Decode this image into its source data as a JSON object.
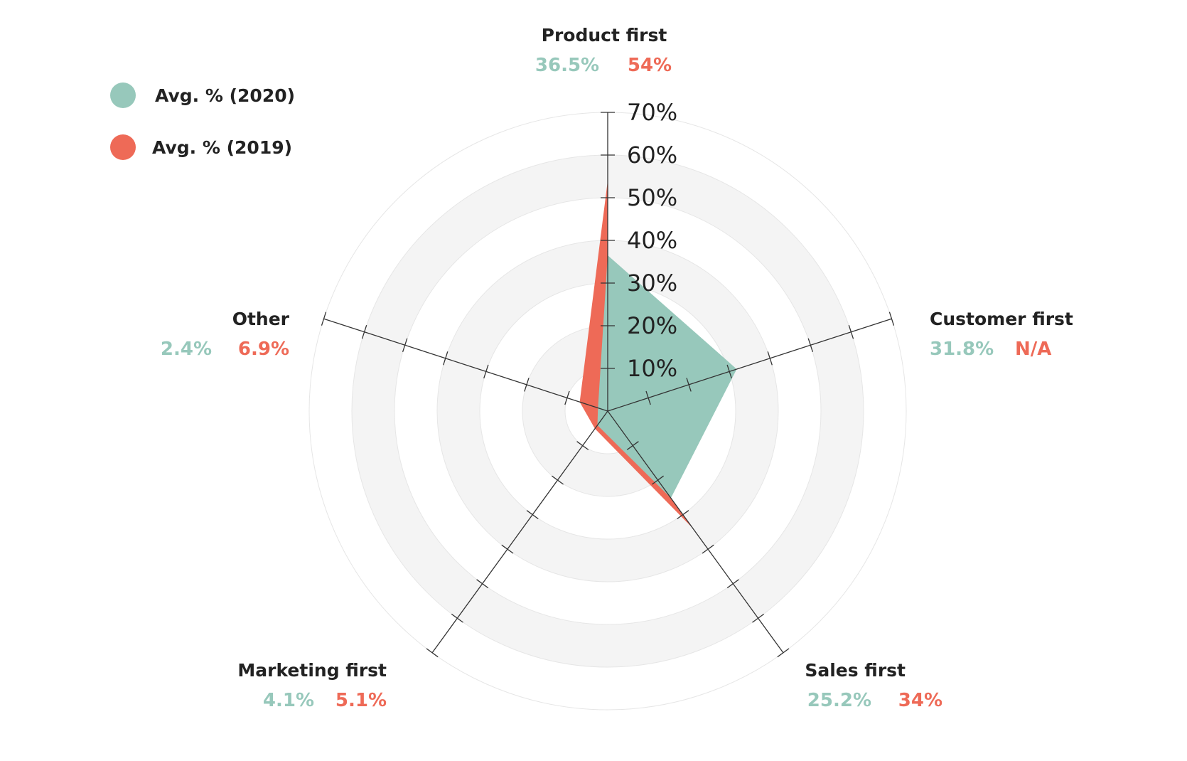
{
  "chart_data": {
    "type": "radar",
    "axis": {
      "min": 0,
      "max": 70,
      "ticks": [
        "10%",
        "20%",
        "30%",
        "40%",
        "50%",
        "60%",
        "70%"
      ]
    },
    "categories": [
      "Product first",
      "Customer first",
      "Sales first",
      "Marketing first",
      "Other"
    ],
    "series": [
      {
        "name": "Avg. % (2020)",
        "color": "#97c8bb",
        "values": [
          36.5,
          31.8,
          25.2,
          4.1,
          2.4
        ],
        "labels": [
          "36.5%",
          "31.8%",
          "25.2%",
          "4.1%",
          "2.4%"
        ]
      },
      {
        "name": "Avg. % (2019)",
        "color": "#ee6a57",
        "values": [
          54,
          null,
          34,
          5.1,
          6.9
        ],
        "labels": [
          "54%",
          "N/A",
          "34%",
          "5.1%",
          "6.9%"
        ]
      }
    ],
    "grid": true,
    "legend_position": "top-left"
  }
}
